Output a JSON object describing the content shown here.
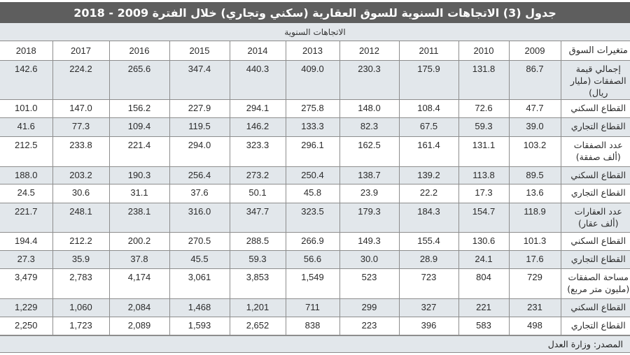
{
  "title": "جدول (3) الاتجاهات السنوية للسوق العقارية (سكني وتجاري) خلال الفترة 2009 - 2018",
  "subheader": "الاتجاهات السنوية",
  "colors": {
    "title_bg": "#5e5e5e",
    "shade_bg": "#e2e7eb",
    "border": "#8d8d8d"
  },
  "table": {
    "label_header": "متغيرات السوق",
    "years": [
      "2009",
      "2010",
      "2011",
      "2012",
      "2013",
      "2014",
      "2015",
      "2016",
      "2017",
      "2018"
    ],
    "rows": [
      {
        "label": "إجمالي قيمة الصفقات (مليار ريال)",
        "values": [
          "86.7",
          "131.8",
          "175.9",
          "230.3",
          "409.0",
          "440.3",
          "347.4",
          "265.6",
          "224.2",
          "142.6"
        ]
      },
      {
        "label": "القطاع السكني",
        "values": [
          "47.7",
          "72.6",
          "108.4",
          "148.0",
          "275.8",
          "294.1",
          "227.9",
          "156.2",
          "147.0",
          "101.0"
        ]
      },
      {
        "label": "القطاع التجاري",
        "values": [
          "39.0",
          "59.3",
          "67.5",
          "82.3",
          "133.3",
          "146.2",
          "119.5",
          "109.4",
          "77.3",
          "41.6"
        ]
      },
      {
        "label": "عدد الصفقات (ألف صفقة)",
        "values": [
          "103.2",
          "131.1",
          "161.4",
          "162.5",
          "296.1",
          "323.3",
          "294.0",
          "221.4",
          "233.8",
          "212.5"
        ]
      },
      {
        "label": "القطاع السكني",
        "values": [
          "89.5",
          "113.8",
          "139.2",
          "138.7",
          "250.4",
          "273.2",
          "256.4",
          "190.3",
          "203.2",
          "188.0"
        ]
      },
      {
        "label": "القطاع التجاري",
        "values": [
          "13.6",
          "17.3",
          "22.2",
          "23.9",
          "45.8",
          "50.1",
          "37.6",
          "31.1",
          "30.6",
          "24.5"
        ]
      },
      {
        "label": "عدد العقارات (ألف عقار)",
        "values": [
          "118.9",
          "154.7",
          "184.3",
          "179.3",
          "323.5",
          "347.7",
          "316.0",
          "238.1",
          "248.1",
          "221.7"
        ]
      },
      {
        "label": "القطاع السكني",
        "values": [
          "101.3",
          "130.6",
          "155.4",
          "149.3",
          "266.9",
          "288.5",
          "270.5",
          "200.2",
          "212.2",
          "194.4"
        ]
      },
      {
        "label": "القطاع التجاري",
        "values": [
          "17.6",
          "24.1",
          "28.9",
          "30.0",
          "56.6",
          "59.3",
          "45.5",
          "37.8",
          "35.9",
          "27.3"
        ]
      },
      {
        "label": "مساحة الصفقات (مليون متر مربع)",
        "values": [
          "729",
          "804",
          "723",
          "523",
          "1,549",
          "3,853",
          "3,061",
          "4,174",
          "2,783",
          "3,479"
        ]
      },
      {
        "label": "القطاع السكني",
        "values": [
          "231",
          "221",
          "327",
          "299",
          "711",
          "1,201",
          "1,468",
          "2,084",
          "1,060",
          "1,229"
        ]
      },
      {
        "label": "القطاع التجاري",
        "values": [
          "498",
          "583",
          "396",
          "223",
          "838",
          "2,652",
          "1,593",
          "2,089",
          "1,723",
          "2,250"
        ]
      }
    ]
  },
  "source": "المصدر: وزارة العدل"
}
